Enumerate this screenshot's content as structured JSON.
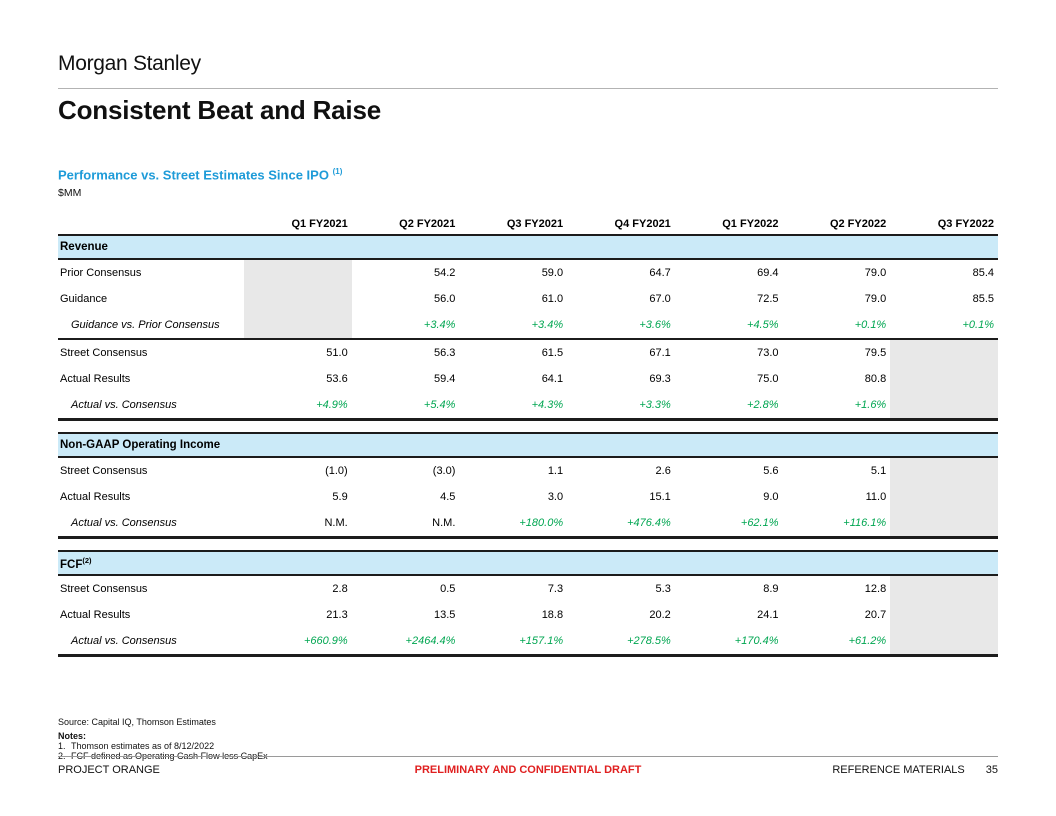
{
  "header": {
    "logo": "Morgan Stanley",
    "title": "Consistent Beat and Raise"
  },
  "exhibit": {
    "heading": "Performance vs. Street Estimates Since IPO",
    "heading_footnote": "(1)",
    "units_label": "$MM"
  },
  "table": {
    "columns": [
      "Q1 FY2021",
      "Q2 FY2021",
      "Q3 FY2021",
      "Q4 FY2021",
      "Q1 FY2022",
      "Q2 FY2022",
      "Q3 FY2022"
    ],
    "sections": [
      {
        "title": "Revenue",
        "title_footnote": "",
        "groups": [
          {
            "rows": [
              {
                "label": "Prior Consensus",
                "indent": false,
                "delta": false,
                "values": [
                  "",
                  "54.2",
                  "59.0",
                  "64.7",
                  "69.4",
                  "79.0",
                  "85.4"
                ],
                "gray_cols": [
                  0
                ]
              },
              {
                "label": "Guidance",
                "indent": false,
                "delta": false,
                "values": [
                  "",
                  "56.0",
                  "61.0",
                  "67.0",
                  "72.5",
                  "79.0",
                  "85.5"
                ],
                "gray_cols": [
                  0
                ]
              },
              {
                "label": "Guidance vs. Prior Consensus",
                "indent": true,
                "delta": true,
                "values": [
                  "",
                  "+3.4%",
                  "+3.4%",
                  "+3.6%",
                  "+4.5%",
                  "+0.1%",
                  "+0.1%"
                ],
                "gray_cols": [
                  0
                ]
              }
            ]
          },
          {
            "rows": [
              {
                "label": "Street Consensus",
                "indent": false,
                "delta": false,
                "values": [
                  "51.0",
                  "56.3",
                  "61.5",
                  "67.1",
                  "73.0",
                  "79.5",
                  ""
                ],
                "gray_cols": [
                  6
                ]
              },
              {
                "label": "Actual Results",
                "indent": false,
                "delta": false,
                "values": [
                  "53.6",
                  "59.4",
                  "64.1",
                  "69.3",
                  "75.0",
                  "80.8",
                  ""
                ],
                "gray_cols": [
                  6
                ]
              },
              {
                "label": "Actual vs. Consensus",
                "indent": true,
                "delta": true,
                "values": [
                  "+4.9%",
                  "+5.4%",
                  "+4.3%",
                  "+3.3%",
                  "+2.8%",
                  "+1.6%",
                  ""
                ],
                "gray_cols": [
                  6
                ]
              }
            ]
          }
        ]
      },
      {
        "title": "Non-GAAP Operating Income",
        "title_footnote": "",
        "groups": [
          {
            "rows": [
              {
                "label": "Street Consensus",
                "indent": false,
                "delta": false,
                "values": [
                  "(1.0)",
                  "(3.0)",
                  "1.1",
                  "2.6",
                  "5.6",
                  "5.1",
                  ""
                ],
                "gray_cols": [
                  6
                ]
              },
              {
                "label": "Actual Results",
                "indent": false,
                "delta": false,
                "values": [
                  "5.9",
                  "4.5",
                  "3.0",
                  "15.1",
                  "9.0",
                  "11.0",
                  ""
                ],
                "gray_cols": [
                  6
                ]
              },
              {
                "label": "Actual vs. Consensus",
                "indent": true,
                "delta": true,
                "values": [
                  "N.M.",
                  "N.M.",
                  "+180.0%",
                  "+476.4%",
                  "+62.1%",
                  "+116.1%",
                  ""
                ],
                "gray_cols": [
                  6
                ]
              }
            ]
          }
        ]
      },
      {
        "title": "FCF",
        "title_footnote": "(2)",
        "groups": [
          {
            "rows": [
              {
                "label": "Street Consensus",
                "indent": false,
                "delta": false,
                "values": [
                  "2.8",
                  "0.5",
                  "7.3",
                  "5.3",
                  "8.9",
                  "12.8",
                  ""
                ],
                "gray_cols": [
                  6
                ]
              },
              {
                "label": "Actual Results",
                "indent": false,
                "delta": false,
                "values": [
                  "21.3",
                  "13.5",
                  "18.8",
                  "20.2",
                  "24.1",
                  "20.7",
                  ""
                ],
                "gray_cols": [
                  6
                ]
              },
              {
                "label": "Actual vs. Consensus",
                "indent": true,
                "delta": true,
                "values": [
                  "+660.9%",
                  "+2464.4%",
                  "+157.1%",
                  "+278.5%",
                  "+170.4%",
                  "+61.2%",
                  ""
                ],
                "gray_cols": [
                  6
                ]
              }
            ]
          }
        ]
      }
    ]
  },
  "footnotes": {
    "source": "Source: Capital IQ, Thomson Estimates",
    "notes_label": "Notes:",
    "notes": [
      {
        "num": "1.",
        "text": "Thomson estimates as of 8/12/2022"
      },
      {
        "num": "2.",
        "text": "FCF defined as Operating Cash Flow less CapEx"
      }
    ]
  },
  "footer": {
    "left": "PROJECT ORANGE",
    "center": "PRELIMINARY AND CONFIDENTIAL DRAFT",
    "right": "REFERENCE MATERIALS",
    "page_number": "35"
  },
  "colors": {
    "section_band_bg": "#cbeaf8",
    "delta_green": "#00a651",
    "muted_cell_gray": "#e8e8e8",
    "heading_blue": "#1e9bd8",
    "confidential_red": "#e02020"
  }
}
